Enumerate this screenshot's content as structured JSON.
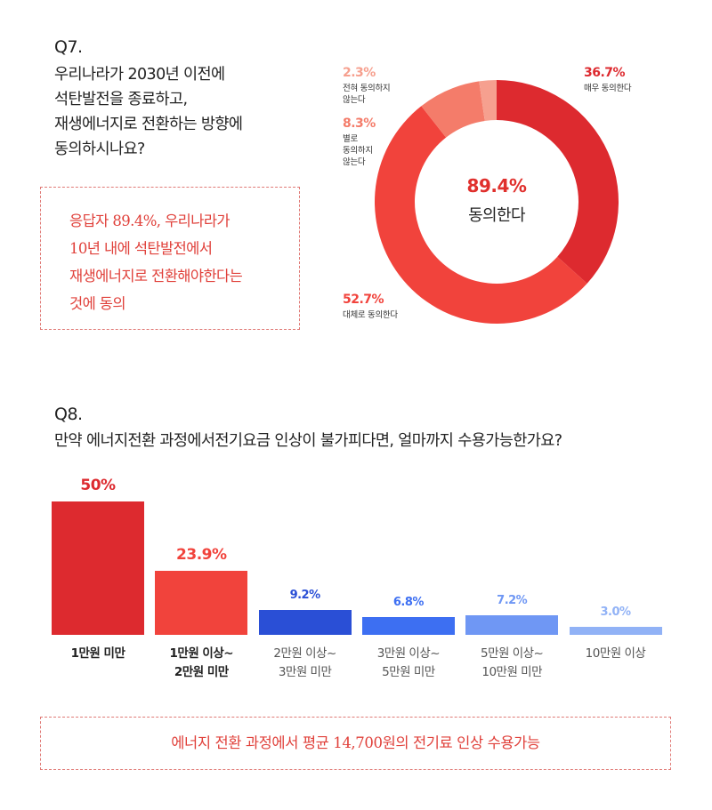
{
  "q7": {
    "number": "Q7.",
    "lines": [
      "우리나라가 2030년 이전에",
      "석탄발전을 종료하고,",
      "재생에너지로 전환하는 방향에",
      "동의하시나요?"
    ],
    "callout_lines": [
      "응답자 89.4%, 우리나라가",
      "10년 내에 석탄발전에서",
      "재생에너지로 전환해야한다는",
      "것에 동의"
    ],
    "center_value": "89.4%",
    "center_label": "동의한다"
  },
  "q8": {
    "number": "Q8.",
    "question": "만약 에너지전환 과정에서전기요금 인상이 불가피다면, 얼마까지 수용가능한가요?",
    "callout": "에너지 전환 과정에서 평균 14,700원의 전기료 인상 수용가능"
  },
  "colors": {
    "dark_red": "#dd2a2f",
    "red": "#f1433c",
    "salmon": "#f47c6a",
    "peach": "#f6a08f",
    "blue_dark": "#2a4fd6",
    "blue": "#3d6ff2",
    "blue_light": "#6f97f4",
    "blue_pale": "#91b2f6",
    "text": "#222222"
  },
  "chart_data": [
    {
      "type": "pie",
      "variant": "donut",
      "categories": [
        "매우 동의한다",
        "대체로 동의한다",
        "별로 동의하지 않는다",
        "전혀 동의하지 않는다"
      ],
      "values": [
        36.7,
        52.7,
        8.3,
        2.3
      ],
      "value_labels": [
        "36.7%",
        "52.7%",
        "8.3%",
        "2.3%"
      ],
      "label_lines": [
        [
          "매우 동의한다"
        ],
        [
          "대체로 동의한다"
        ],
        [
          "별로",
          "동의하지",
          "않는다"
        ],
        [
          "전혀 동의하지",
          "않는다"
        ]
      ],
      "colors": [
        "#dd2a2f",
        "#f1433c",
        "#f47c6a",
        "#f6a08f"
      ]
    },
    {
      "type": "bar",
      "categories": [
        "1만원 미만",
        "1만원 이상~ 2만원 미만",
        "2만원 이상~ 3만원 미만",
        "3만원 이상~ 5만원 미만",
        "5만원 이상~ 10만원 미만",
        "10만원 이상"
      ],
      "category_lines": [
        [
          "1만원 미만"
        ],
        [
          "1만원 이상~",
          "2만원 미만"
        ],
        [
          "2만원 이상~",
          "3만원 미만"
        ],
        [
          "3만원 이상~",
          "5만원 미만"
        ],
        [
          "5만원 이상~",
          "10만원 미만"
        ],
        [
          "10만원 이상"
        ]
      ],
      "values": [
        50,
        23.9,
        9.2,
        6.8,
        7.2,
        3.0
      ],
      "value_labels": [
        "50%",
        "23.9%",
        "9.2%",
        "6.8%",
        "7.2%",
        "3.0%"
      ],
      "colors": [
        "#dd2a2f",
        "#f1433c",
        "#2a4fd6",
        "#3d6ff2",
        "#6f97f4",
        "#91b2f6"
      ],
      "label_colors": [
        "#dd2a2f",
        "#f1433c",
        "#2a4fd6",
        "#3d6ff2",
        "#6f97f4",
        "#91b2f6"
      ],
      "category_colors": [
        "#222222",
        "#222222",
        "#555555",
        "#555555",
        "#555555",
        "#555555"
      ],
      "category_bold": [
        true,
        true,
        false,
        false,
        false,
        false
      ]
    }
  ]
}
